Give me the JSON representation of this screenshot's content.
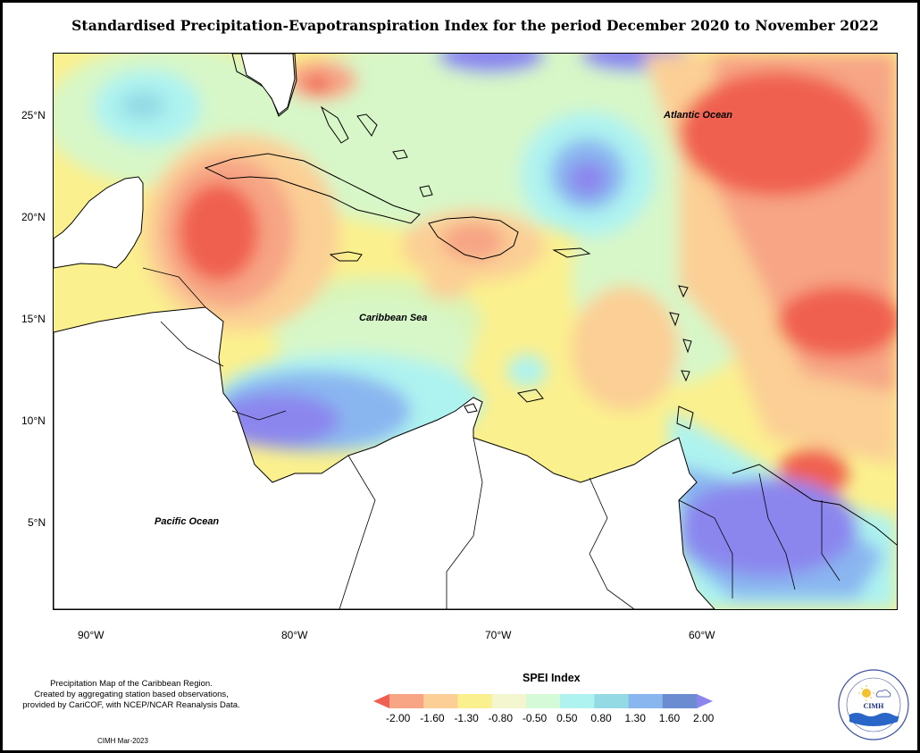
{
  "title": "Standardised Precipitation-Evapotranspiration Index for the period December 2020 to November 2022",
  "axes": {
    "lat_ticks": [
      "25°N",
      "20°N",
      "15°N",
      "10°N",
      "5°N"
    ],
    "lon_ticks": [
      "90°W",
      "80°W",
      "70°W",
      "60°W"
    ]
  },
  "labels": {
    "atlantic": "Atlantic Ocean",
    "caribbean": "Caribbean Sea",
    "pacific": "Pacific Ocean"
  },
  "credit": {
    "line1": "Precipitation Map of the Caribbean Region.",
    "line2": "Created by aggregating station based observations,",
    "line3": "provided by CariCOF, with NCEP/NCAR Reanalysis Data."
  },
  "stamp": "CIMH Mar-2023",
  "legend": {
    "title": "SPEI Index",
    "ticks": [
      "-2.00",
      "-1.60",
      "-1.30",
      "-0.80",
      "-0.50",
      "0.50",
      "0.80",
      "1.30",
      "1.60",
      "2.00"
    ],
    "colors": [
      "#f06050",
      "#f7a585",
      "#fbcf95",
      "#fbf08e",
      "#f4f6d0",
      "#d5fad8",
      "#aef3f0",
      "#93dae5",
      "#8ab6f0",
      "#6b8cd0",
      "#8b86ee"
    ]
  },
  "logo": {
    "text": "CIMH"
  }
}
